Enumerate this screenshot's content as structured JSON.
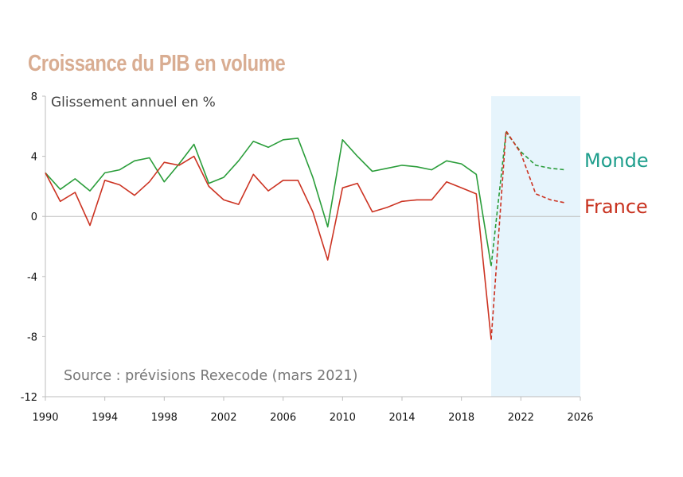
{
  "chart_data": {
    "type": "line",
    "title": "Croissance du PIB en volume",
    "ylabel": "Glissement annuel en %",
    "source": "Source : prévisions Rexecode (mars 2021)",
    "xlim": [
      1990,
      2026
    ],
    "ylim": [
      -12,
      8
    ],
    "x_ticks": [
      1990,
      1994,
      1998,
      2002,
      2006,
      2010,
      2014,
      2018,
      2022,
      2026
    ],
    "x_tick_labels": [
      "1990",
      "1994",
      "1998",
      "2002",
      "2006",
      "2010",
      "2014",
      "2018",
      "2022",
      "2026"
    ],
    "y_ticks": [
      8,
      4,
      0,
      -4,
      -8,
      -12
    ],
    "y_tick_labels": [
      "8",
      "4",
      "0",
      "-4",
      "-8",
      "-12"
    ],
    "forecast_region": [
      2020,
      2026
    ],
    "series": [
      {
        "name": "Monde",
        "color": "#2a9d3a",
        "label_color": "#1e9e8c",
        "x": [
          1990,
          1991,
          1992,
          1993,
          1994,
          1995,
          1996,
          1997,
          1998,
          1999,
          2000,
          2001,
          2002,
          2003,
          2004,
          2005,
          2006,
          2007,
          2008,
          2009,
          2010,
          2011,
          2012,
          2013,
          2014,
          2015,
          2016,
          2017,
          2018,
          2019,
          2020
        ],
        "values": [
          2.9,
          1.8,
          2.5,
          1.7,
          2.9,
          3.1,
          3.7,
          3.9,
          2.3,
          3.5,
          4.8,
          2.2,
          2.6,
          3.7,
          5.0,
          4.6,
          5.1,
          5.2,
          2.6,
          -0.7,
          5.1,
          4.0,
          3.0,
          3.2,
          3.4,
          3.3,
          3.1,
          3.7,
          3.5,
          2.8,
          -3.3
        ],
        "forecast_x": [
          2020,
          2021,
          2022,
          2023,
          2024,
          2025
        ],
        "forecast_values": [
          -3.3,
          5.6,
          4.3,
          3.4,
          3.2,
          3.1
        ]
      },
      {
        "name": "France",
        "color": "#cc3322",
        "label_color": "#c8321f",
        "x": [
          1990,
          1991,
          1992,
          1993,
          1994,
          1995,
          1996,
          1997,
          1998,
          1999,
          2000,
          2001,
          2002,
          2003,
          2004,
          2005,
          2006,
          2007,
          2008,
          2009,
          2010,
          2011,
          2012,
          2013,
          2014,
          2015,
          2016,
          2017,
          2018,
          2019,
          2020
        ],
        "values": [
          2.9,
          1.0,
          1.6,
          -0.6,
          2.4,
          2.1,
          1.4,
          2.3,
          3.6,
          3.4,
          4.0,
          2.0,
          1.1,
          0.8,
          2.8,
          1.7,
          2.4,
          2.4,
          0.3,
          -2.9,
          1.9,
          2.2,
          0.3,
          0.6,
          1.0,
          1.1,
          1.1,
          2.3,
          1.9,
          1.5,
          -8.2
        ],
        "forecast_x": [
          2020,
          2021,
          2022,
          2023,
          2024,
          2025
        ],
        "forecast_values": [
          -8.2,
          5.7,
          4.2,
          1.5,
          1.1,
          0.9
        ]
      }
    ]
  }
}
